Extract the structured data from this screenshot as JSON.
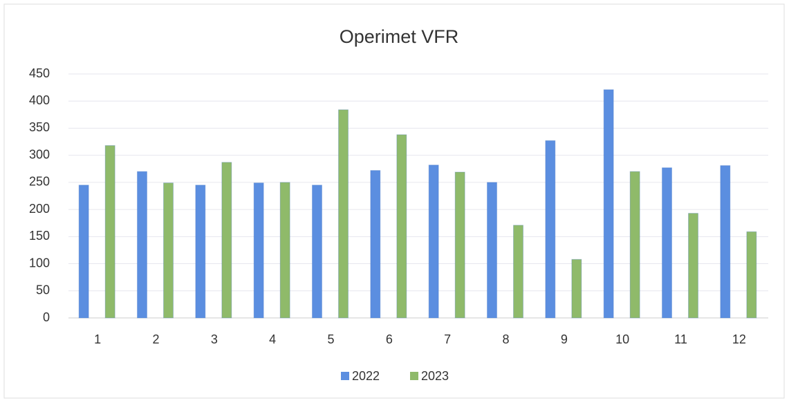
{
  "chart_data": {
    "type": "bar",
    "title": "Operimet VFR",
    "categories": [
      "1",
      "2",
      "3",
      "4",
      "5",
      "6",
      "7",
      "8",
      "9",
      "10",
      "11",
      "12"
    ],
    "series": [
      {
        "name": "2022",
        "color": "#5b8ee0",
        "values": [
          245,
          270,
          245,
          249,
          245,
          272,
          282,
          250,
          327,
          421,
          277,
          281
        ]
      },
      {
        "name": "2023",
        "color": "#8fba6a",
        "values": [
          318,
          249,
          287,
          250,
          384,
          338,
          269,
          171,
          108,
          270,
          193,
          159
        ]
      }
    ],
    "ylim": [
      0,
      450
    ],
    "yticks": [
      0,
      50,
      100,
      150,
      200,
      250,
      300,
      350,
      400,
      450
    ],
    "grid": true,
    "legend": "bottom"
  }
}
